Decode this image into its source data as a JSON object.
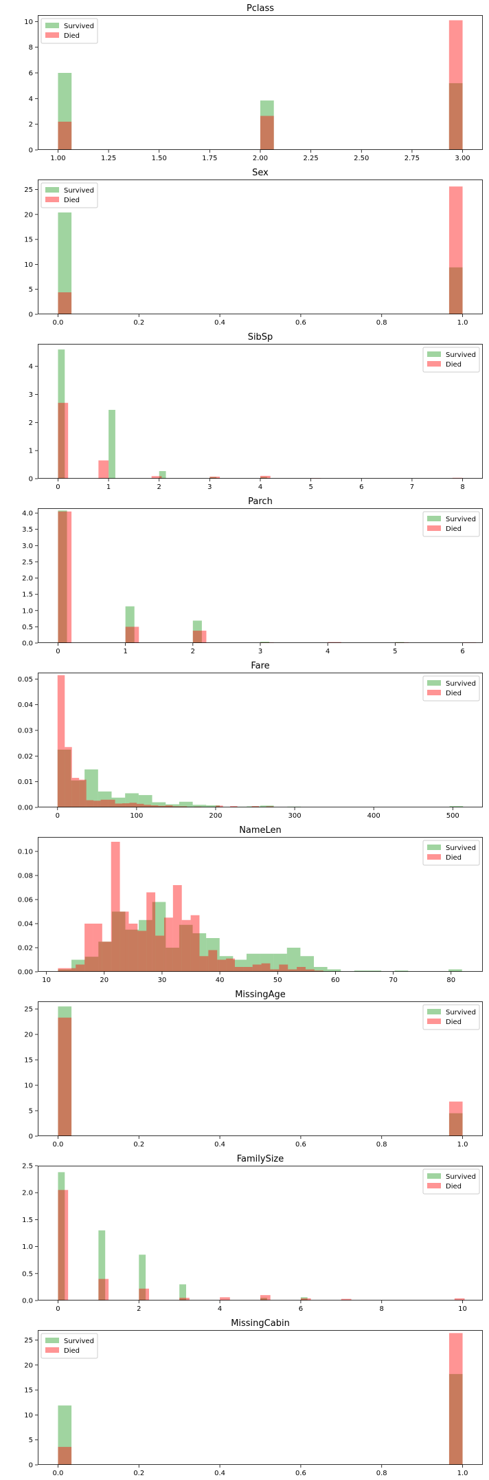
{
  "colors": {
    "survived": "#2ca02c",
    "died": "#ff0000",
    "overlap_note": "semi-transparent green and red overlapping bars"
  },
  "legend_labels": {
    "survived": "Survived",
    "died": "Died"
  },
  "chart_data": [
    {
      "type": "bar",
      "title": "Pclass",
      "legend": "upper-left",
      "xlim": [
        0.9,
        3.1
      ],
      "xticks": [
        "1.00",
        "1.25",
        "1.50",
        "1.75",
        "2.00",
        "2.25",
        "2.50",
        "2.75",
        "3.00"
      ],
      "xtick_values": [
        1,
        1.25,
        1.5,
        1.75,
        2,
        2.25,
        2.5,
        2.75,
        3
      ],
      "ylim": [
        0,
        10.5
      ],
      "yticks": [
        "0",
        "2",
        "4",
        "6",
        "8",
        "10"
      ],
      "ytick_values": [
        0,
        2,
        4,
        6,
        8,
        10
      ],
      "bin_width": 0.067,
      "series": [
        {
          "name": "Survived",
          "x": [
            1,
            2,
            2.933
          ],
          "values": [
            6.0,
            3.85,
            5.2
          ]
        },
        {
          "name": "Died",
          "x": [
            1,
            2,
            2.933
          ],
          "values": [
            2.2,
            2.65,
            10.1
          ]
        }
      ]
    },
    {
      "type": "bar",
      "title": "Sex",
      "legend": "upper-left",
      "xlim": [
        -0.05,
        1.05
      ],
      "xticks": [
        "0.0",
        "0.2",
        "0.4",
        "0.6",
        "0.8",
        "1.0"
      ],
      "xtick_values": [
        0,
        0.2,
        0.4,
        0.6,
        0.8,
        1
      ],
      "ylim": [
        0,
        27
      ],
      "yticks": [
        "0",
        "5",
        "10",
        "15",
        "20",
        "25"
      ],
      "ytick_values": [
        0,
        5,
        10,
        15,
        20,
        25
      ],
      "bin_width": 0.0333,
      "series": [
        {
          "name": "Survived",
          "x": [
            0,
            0.9667
          ],
          "values": [
            20.4,
            9.4
          ]
        },
        {
          "name": "Died",
          "x": [
            0,
            0.9667
          ],
          "values": [
            4.4,
            25.6
          ]
        }
      ]
    },
    {
      "type": "bar",
      "title": "SibSp",
      "legend": "upper-right",
      "xlim": [
        -0.4,
        8.4
      ],
      "xticks": [
        "0",
        "1",
        "2",
        "3",
        "4",
        "5",
        "6",
        "7",
        "8"
      ],
      "xtick_values": [
        0,
        1,
        2,
        3,
        4,
        5,
        6,
        7,
        8
      ],
      "ylim": [
        0,
        4.8
      ],
      "yticks": [
        "0",
        "1",
        "2",
        "3",
        "4"
      ],
      "ytick_values": [
        0,
        1,
        2,
        3,
        4
      ],
      "series": [
        {
          "name": "Survived",
          "x": [
            0,
            1,
            2,
            3,
            4
          ],
          "values": [
            4.6,
            2.45,
            0.27,
            0.06,
            0.06
          ],
          "bin_width": 0.1333
        },
        {
          "name": "Died",
          "x": [
            0,
            0.8,
            1.85,
            3,
            4,
            5,
            7.8
          ],
          "values": [
            2.7,
            0.65,
            0.09,
            0.07,
            0.1,
            0.02,
            0.03
          ],
          "bin_width": 0.2
        }
      ]
    },
    {
      "type": "bar",
      "title": "Parch",
      "legend": "upper-right",
      "xlim": [
        -0.3,
        6.3
      ],
      "xticks": [
        "0",
        "1",
        "2",
        "3",
        "4",
        "5",
        "6"
      ],
      "xtick_values": [
        0,
        1,
        2,
        3,
        4,
        5,
        6
      ],
      "ylim": [
        0,
        4.15
      ],
      "yticks": [
        "0.0",
        "0.5",
        "1.0",
        "1.5",
        "2.0",
        "2.5",
        "3.0",
        "3.5",
        "4.0"
      ],
      "ytick_values": [
        0,
        0.5,
        1,
        1.5,
        2,
        2.5,
        3,
        3.5,
        4
      ],
      "series": [
        {
          "name": "Survived",
          "x": [
            0,
            1,
            2,
            3,
            5
          ],
          "values": [
            4.08,
            1.13,
            0.69,
            0.04,
            0.03
          ],
          "bin_width": 0.1333
        },
        {
          "name": "Died",
          "x": [
            0,
            1,
            2,
            3,
            4,
            5,
            6
          ],
          "values": [
            4.05,
            0.5,
            0.38,
            0.02,
            0.03,
            0.02,
            0.02
          ],
          "bin_width": 0.2
        }
      ]
    },
    {
      "type": "bar",
      "title": "Fare",
      "legend": "upper-right",
      "xlim": [
        -25,
        538
      ],
      "xticks": [
        "0",
        "100",
        "200",
        "300",
        "400",
        "500"
      ],
      "xtick_values": [
        0,
        100,
        200,
        300,
        400,
        500
      ],
      "ylim": [
        0,
        0.0525
      ],
      "yticks": [
        "0.00",
        "0.01",
        "0.02",
        "0.03",
        "0.04",
        "0.05"
      ],
      "ytick_values": [
        0,
        0.01,
        0.02,
        0.03,
        0.04,
        0.05
      ],
      "series": [
        {
          "name": "Survived",
          "bin_start": 0,
          "bin_width": 17.1,
          "values": [
            0.0225,
            0.0105,
            0.0148,
            0.0062,
            0.0038,
            0.0055,
            0.0048,
            0.002,
            0.0012,
            0.0022,
            0.001,
            0.0008,
            0,
            0.0002,
            0.0004,
            0.0007,
            0,
            0.0003,
            0,
            0,
            0,
            0,
            0,
            0,
            0,
            0,
            0,
            0,
            0,
            0.0005
          ]
        },
        {
          "name": "Died",
          "bin_start": 0,
          "bin_width": 9.1,
          "values": [
            0.0515,
            0.0235,
            0.0115,
            0.0108,
            0.0028,
            0.0026,
            0.003,
            0.003,
            0.0015,
            0.0016,
            0.0018,
            0.0014,
            0.001,
            0.0008,
            0.0006,
            0.0008,
            0.0004,
            0.0004,
            0,
            0.0003,
            0,
            0,
            0.0007,
            0,
            0.0005,
            0,
            0,
            0.0005,
            0,
            0.0004
          ]
        }
      ]
    },
    {
      "type": "bar",
      "title": "NameLen",
      "legend": "upper-right",
      "xlim": [
        8.5,
        85.5
      ],
      "xticks": [
        "10",
        "20",
        "30",
        "40",
        "50",
        "60",
        "70",
        "80"
      ],
      "xtick_values": [
        10,
        20,
        30,
        40,
        50,
        60,
        70,
        80
      ],
      "ylim": [
        0,
        0.112
      ],
      "yticks": [
        "0.00",
        "0.02",
        "0.04",
        "0.06",
        "0.08",
        "0.10"
      ],
      "ytick_values": [
        0,
        0.02,
        0.04,
        0.06,
        0.08,
        0.1
      ],
      "series": [
        {
          "name": "Survived",
          "bin_start": 12,
          "bin_width": 2.33,
          "values": [
            0.002,
            0.01,
            0.0125,
            0.025,
            0.05,
            0.035,
            0.043,
            0.058,
            0.02,
            0.039,
            0.032,
            0.028,
            0.013,
            0.01,
            0.015,
            0.015,
            0.015,
            0.02,
            0.013,
            0.004,
            0.002,
            0,
            0.001,
            0.001,
            0,
            0.001,
            0,
            0,
            0,
            0.002
          ]
        },
        {
          "name": "Died",
          "bin_start": 12,
          "bin_width": 1.53,
          "values": [
            0.003,
            0.003,
            0.006,
            0.04,
            0.04,
            0.025,
            0.108,
            0.05,
            0.04,
            0.034,
            0.066,
            0.03,
            0.045,
            0.072,
            0.043,
            0.047,
            0.013,
            0.018,
            0.01,
            0.011,
            0.004,
            0.004,
            0.006,
            0.007,
            0.002,
            0.006,
            0.002,
            0.004,
            0.002,
            0.001
          ]
        }
      ]
    },
    {
      "type": "bar",
      "title": "MissingAge",
      "legend": "upper-right",
      "xlim": [
        -0.05,
        1.05
      ],
      "xticks": [
        "0.0",
        "0.2",
        "0.4",
        "0.6",
        "0.8",
        "1.0"
      ],
      "xtick_values": [
        0,
        0.2,
        0.4,
        0.6,
        0.8,
        1
      ],
      "ylim": [
        0,
        26.5
      ],
      "yticks": [
        "0",
        "5",
        "10",
        "15",
        "20",
        "25"
      ],
      "ytick_values": [
        0,
        5,
        10,
        15,
        20,
        25
      ],
      "bin_width": 0.0333,
      "series": [
        {
          "name": "Survived",
          "x": [
            0,
            0.9667
          ],
          "values": [
            25.5,
            4.5
          ]
        },
        {
          "name": "Died",
          "x": [
            0,
            0.9667
          ],
          "values": [
            23.3,
            6.8
          ]
        }
      ]
    },
    {
      "type": "bar",
      "title": "FamilySize",
      "legend": "upper-right",
      "xlim": [
        -0.5,
        10.5
      ],
      "xticks": [
        "0",
        "2",
        "4",
        "6",
        "8",
        "10"
      ],
      "xtick_values": [
        0,
        2,
        4,
        6,
        8,
        10
      ],
      "ylim": [
        0,
        2.5
      ],
      "yticks": [
        "0.0",
        "0.5",
        "1.0",
        "1.5",
        "2.0",
        "2.5"
      ],
      "ytick_values": [
        0,
        0.5,
        1,
        1.5,
        2,
        2.5
      ],
      "series": [
        {
          "name": "Survived",
          "x": [
            0,
            1,
            2,
            3,
            5,
            6
          ],
          "values": [
            2.38,
            1.3,
            0.85,
            0.3,
            0.05,
            0.06
          ],
          "bin_width": 0.1667
        },
        {
          "name": "Died",
          "x": [
            0,
            1,
            2,
            3,
            4,
            5,
            6,
            7,
            9.8
          ],
          "values": [
            2.05,
            0.4,
            0.22,
            0.05,
            0.06,
            0.1,
            0.04,
            0.03,
            0.04
          ],
          "bin_width": 0.25
        }
      ]
    },
    {
      "type": "bar",
      "title": "MissingCabin",
      "legend": "upper-left",
      "xlim": [
        -0.05,
        1.05
      ],
      "xticks": [
        "0.0",
        "0.2",
        "0.4",
        "0.6",
        "0.8",
        "1.0"
      ],
      "xtick_values": [
        0,
        0.2,
        0.4,
        0.6,
        0.8,
        1
      ],
      "ylim": [
        0,
        27
      ],
      "yticks": [
        "0",
        "5",
        "10",
        "15",
        "20",
        "25"
      ],
      "ytick_values": [
        0,
        5,
        10,
        15,
        20,
        25
      ],
      "bin_width": 0.0333,
      "series": [
        {
          "name": "Survived",
          "x": [
            0,
            0.9667
          ],
          "values": [
            11.9,
            18.2
          ]
        },
        {
          "name": "Died",
          "x": [
            0,
            0.9667
          ],
          "values": [
            3.6,
            26.4
          ]
        }
      ]
    }
  ]
}
